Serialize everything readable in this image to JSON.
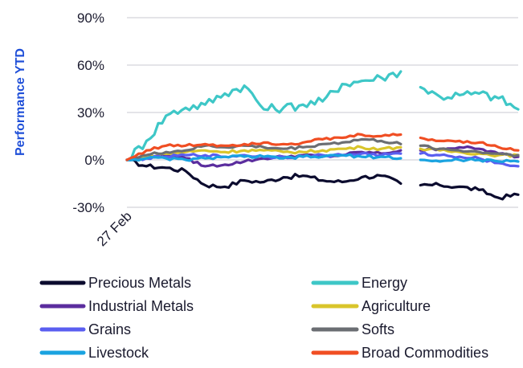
{
  "chart_data": {
    "type": "line",
    "ylabel": "Performance YTD",
    "ylim": [
      -30,
      90
    ],
    "yticks": [
      -30,
      0,
      30,
      60,
      90
    ],
    "ytick_labels": [
      "-30%",
      "0%",
      "30%",
      "60%",
      "90%"
    ],
    "x_start_label": "27 Feb",
    "x": [
      0,
      5,
      10,
      15,
      20,
      25,
      30,
      35,
      40,
      45,
      50,
      55,
      60,
      65,
      70,
      75,
      80,
      85,
      90,
      95,
      100
    ],
    "gap_after_x": 70,
    "grid": true,
    "legend_position": "bottom",
    "series": [
      {
        "name": "Precious Metals",
        "color": "#0b0b2e",
        "values": [
          0,
          -4,
          -5,
          -7,
          -16,
          -17,
          -13,
          -14,
          -11,
          -10,
          -13,
          -14,
          -11,
          -10,
          -15,
          -16,
          -16,
          -17,
          -19,
          -24,
          -22
        ]
      },
      {
        "name": "Energy",
        "color": "#3ec7c7",
        "values": [
          0,
          12,
          28,
          33,
          35,
          42,
          47,
          32,
          33,
          35,
          37,
          48,
          50,
          52,
          56,
          46,
          40,
          41,
          42,
          39,
          32
        ]
      },
      {
        "name": "Industrial Metals",
        "color": "#5b2d9e",
        "values": [
          0,
          2,
          3,
          1,
          -4,
          -3,
          -1,
          1,
          2,
          3,
          2,
          3,
          5,
          4,
          6,
          6,
          7,
          8,
          7,
          4,
          2
        ]
      },
      {
        "name": "Agriculture",
        "color": "#d9c52b",
        "values": [
          0,
          2,
          4,
          5,
          6,
          5,
          6,
          6,
          5,
          5,
          6,
          7,
          8,
          7,
          8,
          7,
          6,
          5,
          4,
          3,
          3
        ]
      },
      {
        "name": "Grains",
        "color": "#5a5ef0",
        "values": [
          0,
          1,
          2,
          3,
          3,
          2,
          3,
          2,
          2,
          2,
          3,
          3,
          4,
          3,
          4,
          4,
          3,
          2,
          1,
          -2,
          -4
        ]
      },
      {
        "name": "Softs",
        "color": "#6b6e73",
        "values": [
          0,
          3,
          5,
          6,
          9,
          8,
          9,
          8,
          7,
          8,
          10,
          11,
          13,
          12,
          10,
          9,
          7,
          6,
          5,
          4,
          3
        ]
      },
      {
        "name": "Livestock",
        "color": "#1aa3e0",
        "values": [
          0,
          1,
          1,
          0,
          1,
          2,
          2,
          2,
          1,
          2,
          2,
          3,
          2,
          2,
          1,
          0,
          -1,
          0,
          0,
          -1,
          -1
        ]
      },
      {
        "name": "Broad Commodities",
        "color": "#f04e23",
        "values": [
          0,
          6,
          9,
          9,
          10,
          9,
          10,
          11,
          10,
          11,
          13,
          14,
          16,
          15,
          16,
          14,
          12,
          12,
          11,
          8,
          6
        ]
      }
    ]
  }
}
